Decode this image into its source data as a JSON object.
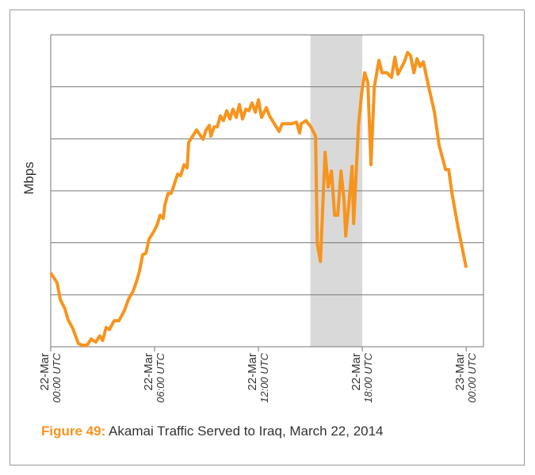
{
  "chart_data": {
    "type": "line",
    "y_label": "Mbps",
    "figure_label": "Figure 49:",
    "caption": "Akamai Traffic Served to Iraq, March 22, 2014",
    "xlim": [
      0,
      25
    ],
    "xticks": [
      {
        "value": 0,
        "label": "22-Mar",
        "time": "00:00 UTC"
      },
      {
        "value": 6,
        "label": "22-Mar",
        "time": "06:00 UTC"
      },
      {
        "value": 12,
        "label": "22-Mar",
        "time": "12:00 UTC"
      },
      {
        "value": 18,
        "label": "22-Mar",
        "time": "18:00 UTC"
      },
      {
        "value": 24,
        "label": "23-Mar",
        "time": "00:00 UTC"
      }
    ],
    "ylim": [
      0,
      6
    ],
    "yticks": [
      0,
      1,
      2,
      3,
      4,
      5,
      6
    ],
    "grid": true,
    "shaded": [
      15,
      18
    ],
    "shade_color": "#d9d9d9",
    "color": "#f7941d",
    "x": [
      0,
      0.37,
      0.55,
      0.82,
      1.0,
      1.28,
      1.6,
      1.83,
      2.1,
      2.34,
      2.6,
      2.84,
      3.0,
      3.2,
      3.39,
      3.66,
      3.94,
      4.26,
      4.49,
      4.76,
      4.95,
      5.13,
      5.31,
      5.5,
      5.68,
      5.96,
      6.14,
      6.32,
      6.5,
      6.6,
      6.78,
      6.96,
      7.15,
      7.33,
      7.51,
      7.7,
      7.88,
      7.97,
      8.25,
      8.43,
      8.61,
      8.8,
      8.98,
      9.16,
      9.25,
      9.44,
      9.62,
      9.8,
      9.98,
      10.17,
      10.35,
      10.53,
      10.72,
      10.9,
      11.08,
      11.27,
      11.45,
      11.63,
      11.82,
      12.0,
      12.18,
      12.46,
      12.64,
      12.92,
      13.19,
      13.37,
      13.65,
      13.92,
      14.2,
      14.38,
      14.47,
      14.75,
      15.03,
      15.3,
      15.4,
      15.58,
      15.85,
      16.03,
      16.22,
      16.4,
      16.58,
      16.77,
      16.95,
      17.04,
      17.23,
      17.41,
      17.5,
      17.78,
      17.96,
      18.14,
      18.32,
      18.5,
      18.69,
      18.96,
      19.14,
      19.42,
      19.69,
      19.88,
      20.06,
      20.24,
      20.43,
      20.61,
      20.79,
      20.98,
      21.16,
      21.34,
      21.53,
      21.8,
      22.17,
      22.44,
      22.81,
      22.99,
      23.18,
      23.54,
      24.0
    ],
    "values": [
      1.42,
      1.23,
      0.91,
      0.73,
      0.52,
      0.35,
      0.06,
      0.03,
      0.03,
      0.15,
      0.09,
      0.21,
      0.12,
      0.37,
      0.33,
      0.5,
      0.5,
      0.7,
      0.91,
      1.07,
      1.25,
      1.46,
      1.77,
      1.8,
      2.07,
      2.22,
      2.34,
      2.53,
      2.47,
      2.74,
      2.95,
      2.95,
      3.14,
      3.32,
      3.29,
      3.5,
      3.44,
      3.93,
      4.08,
      4.17,
      4.08,
      3.99,
      4.17,
      4.26,
      4.05,
      4.23,
      4.23,
      4.44,
      4.35,
      4.54,
      4.38,
      4.57,
      4.41,
      4.66,
      4.38,
      4.57,
      4.54,
      4.69,
      4.51,
      4.75,
      4.41,
      4.6,
      4.44,
      4.29,
      4.14,
      4.29,
      4.29,
      4.29,
      4.32,
      4.11,
      4.29,
      4.35,
      4.23,
      4.05,
      1.98,
      1.64,
      3.74,
      3.07,
      3.38,
      2.53,
      2.53,
      3.38,
      2.8,
      2.13,
      2.77,
      3.47,
      2.37,
      4.26,
      4.87,
      5.27,
      5.08,
      3.5,
      4.99,
      5.51,
      5.27,
      5.27,
      5.18,
      5.57,
      5.24,
      5.36,
      5.48,
      5.66,
      5.6,
      5.27,
      5.54,
      5.39,
      5.48,
      5.05,
      4.51,
      3.87,
      3.41,
      3.41,
      2.95,
      2.28,
      1.52
    ]
  }
}
